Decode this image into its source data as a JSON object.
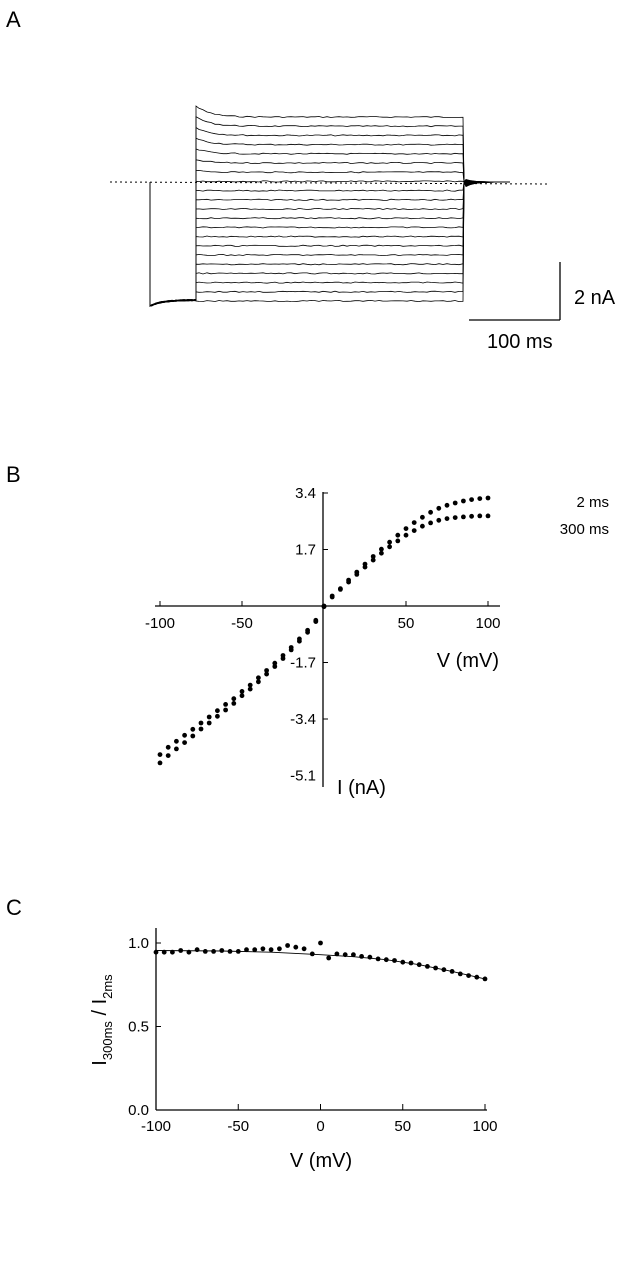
{
  "panels": {
    "a": {
      "letter": "A"
    },
    "b": {
      "letter": "B"
    },
    "c": {
      "letter": "C"
    }
  },
  "chart_data": [
    {
      "type": "line",
      "panel": "A",
      "description_free": true,
      "scale_bars": {
        "current_label": "2 nA",
        "time_label": "100 ms"
      },
      "baseline": "dotted",
      "trace_count": 21
    },
    {
      "type": "scatter",
      "panel": "B",
      "xlabel": "V (mV)",
      "ylabel": "I (nA)",
      "xlim": [
        -100,
        100
      ],
      "ylim": [
        -5.1,
        3.4
      ],
      "xticks": [
        "-100",
        "-50",
        "50",
        "100"
      ],
      "yticks": [
        "3.4",
        "1.7",
        "-1.7",
        "-3.4",
        "-5.1"
      ],
      "x": [
        -100,
        -95,
        -90,
        -85,
        -80,
        -75,
        -70,
        -65,
        -60,
        -55,
        -50,
        -45,
        -40,
        -35,
        -30,
        -25,
        -20,
        -15,
        -10,
        -5,
        0,
        5,
        10,
        15,
        20,
        25,
        30,
        35,
        40,
        45,
        50,
        55,
        60,
        65,
        70,
        75,
        80,
        85,
        90,
        95,
        100
      ],
      "series": [
        {
          "name": "2 ms",
          "values": [
            -4.72,
            -4.5,
            -4.3,
            -4.11,
            -3.91,
            -3.7,
            -3.52,
            -3.32,
            -3.13,
            -2.93,
            -2.7,
            -2.5,
            -2.28,
            -2.05,
            -1.82,
            -1.58,
            -1.32,
            -1.06,
            -0.79,
            -0.47,
            0.0,
            0.3,
            0.52,
            0.78,
            1.02,
            1.26,
            1.49,
            1.71,
            1.92,
            2.13,
            2.33,
            2.51,
            2.67,
            2.82,
            2.94,
            3.03,
            3.1,
            3.16,
            3.2,
            3.23,
            3.25
          ]
        },
        {
          "name": "300 ms",
          "values": [
            -4.47,
            -4.25,
            -4.07,
            -3.89,
            -3.71,
            -3.52,
            -3.34,
            -3.15,
            -2.96,
            -2.79,
            -2.57,
            -2.38,
            -2.16,
            -1.94,
            -1.72,
            -1.49,
            -1.25,
            -0.99,
            -0.73,
            -0.43,
            -0.02,
            0.27,
            0.5,
            0.72,
            0.95,
            1.17,
            1.38,
            1.59,
            1.78,
            1.96,
            2.13,
            2.27,
            2.4,
            2.5,
            2.58,
            2.63,
            2.66,
            2.68,
            2.7,
            2.71,
            2.71
          ]
        }
      ]
    },
    {
      "type": "scatter",
      "panel": "C",
      "xlabel": "V (mV)",
      "ylabel": {
        "main": "I",
        "num_sub": "300ms",
        "sep": " / I",
        "den_sub": "2ms"
      },
      "xlim": [
        -100,
        100
      ],
      "ylim": [
        0,
        1.05
      ],
      "xticks": [
        "-100",
        "-50",
        "0",
        "50",
        "100"
      ],
      "yticks": [
        "1.0",
        "0.5",
        "0.0"
      ],
      "x": [
        -100,
        -95,
        -90,
        -85,
        -80,
        -75,
        -70,
        -65,
        -60,
        -55,
        -50,
        -45,
        -40,
        -35,
        -30,
        -25,
        -20,
        -15,
        -10,
        -5,
        0,
        5,
        10,
        15,
        20,
        25,
        30,
        35,
        40,
        45,
        50,
        55,
        60,
        65,
        70,
        75,
        80,
        85,
        90,
        95,
        100
      ],
      "series": [
        {
          "values": [
            0.945,
            0.945,
            0.945,
            0.955,
            0.945,
            0.96,
            0.95,
            0.95,
            0.955,
            0.95,
            0.95,
            0.96,
            0.96,
            0.965,
            0.96,
            0.965,
            0.985,
            0.975,
            0.965,
            0.935,
            1.0,
            0.91,
            0.935,
            0.93,
            0.93,
            0.92,
            0.915,
            0.905,
            0.9,
            0.895,
            0.885,
            0.88,
            0.87,
            0.86,
            0.85,
            0.84,
            0.83,
            0.815,
            0.805,
            0.795,
            0.785
          ]
        }
      ],
      "fit": {
        "x": [
          -100,
          -60,
          -30,
          0,
          20,
          40,
          60,
          80,
          100
        ],
        "y": [
          0.955,
          0.952,
          0.945,
          0.93,
          0.918,
          0.9,
          0.87,
          0.83,
          0.785
        ]
      }
    }
  ]
}
